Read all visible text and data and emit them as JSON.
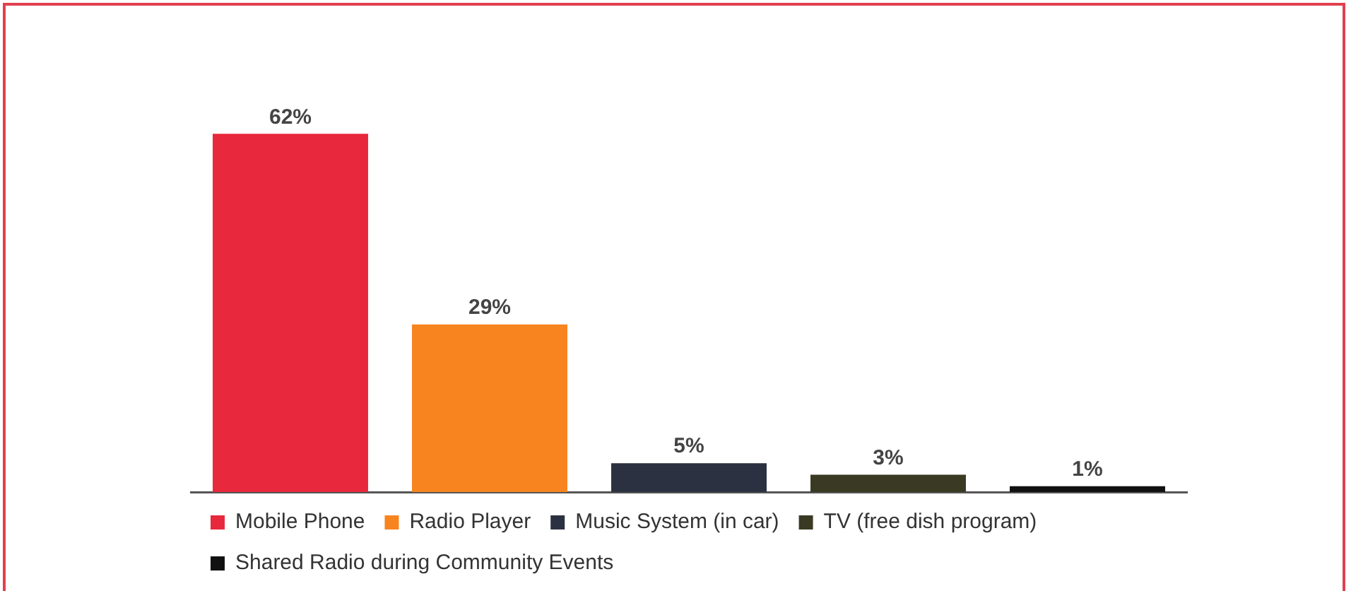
{
  "chart_data": {
    "type": "bar",
    "categories": [
      null,
      null,
      null,
      null,
      null
    ],
    "stacked": true,
    "legend": "bottom",
    "grid": false,
    "series": [
      {
        "name": "Mobile Phone",
        "color": "#e8283c",
        "values": [
          62,
          null,
          null,
          null,
          null
        ],
        "value_labels": [
          "62%",
          null,
          null,
          null,
          null
        ]
      },
      {
        "name": "Radio Player",
        "color": "#f7841f",
        "values": [
          null,
          29,
          null,
          null,
          null
        ],
        "value_labels": [
          null,
          "29%",
          null,
          null,
          null
        ]
      },
      {
        "name": "Music System (in car)",
        "color": "#2b3140",
        "values": [
          null,
          null,
          5,
          null,
          null
        ],
        "value_labels": [
          null,
          null,
          "5%",
          null,
          null
        ]
      },
      {
        "name": "TV (free dish program)",
        "color": "#3a3a24",
        "values": [
          null,
          null,
          null,
          3,
          null
        ],
        "value_labels": [
          null,
          null,
          null,
          "3%",
          null
        ]
      },
      {
        "name": "Shared Radio during Community Events",
        "color": "#111111",
        "values": [
          null,
          null,
          null,
          null,
          1
        ],
        "value_labels": [
          null,
          null,
          null,
          null,
          "1%"
        ]
      }
    ]
  }
}
